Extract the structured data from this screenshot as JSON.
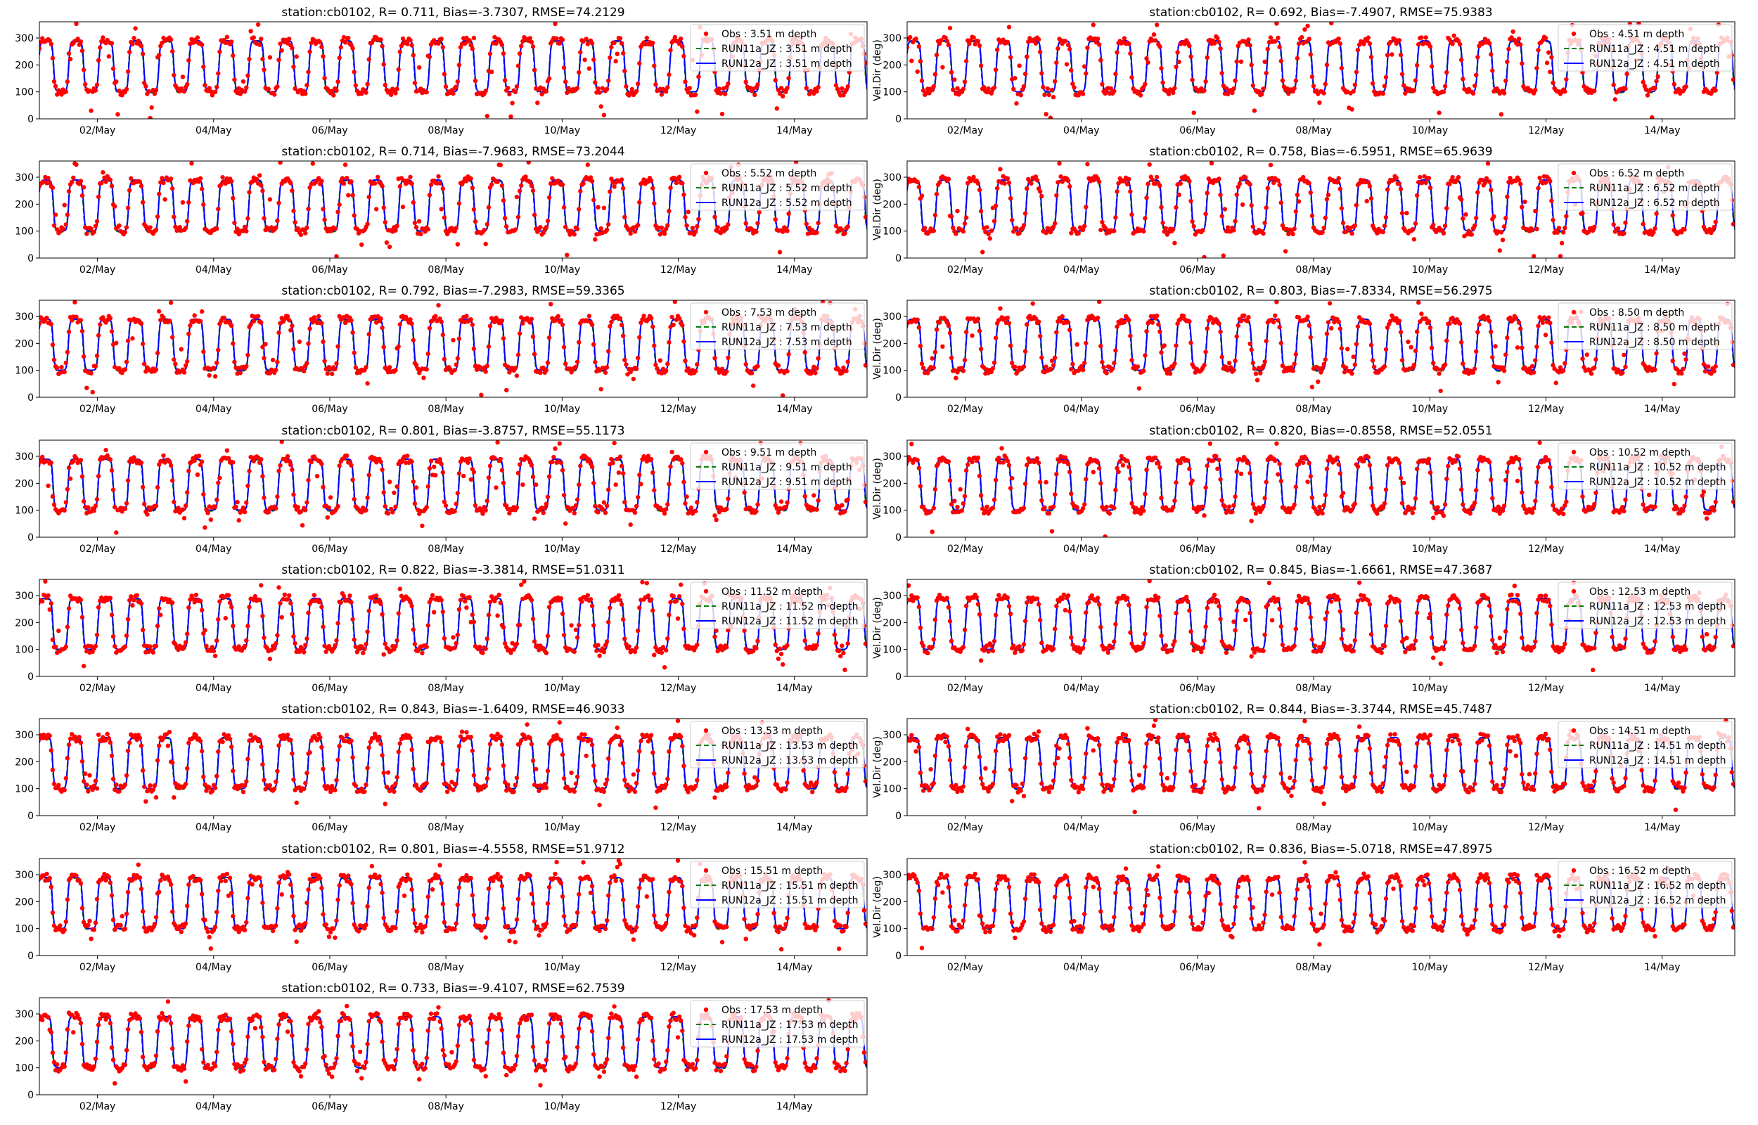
{
  "figure": {
    "background": "#ffffff"
  },
  "chart_data": [
    {
      "type": "scatter",
      "title": "station:cb0102, R= 0.711, Bias=-3.7307, RMSE=74.2129",
      "ylabel": "",
      "ylim": [
        0,
        360
      ],
      "yticks": [
        0,
        100,
        200,
        300
      ],
      "xlim": [
        "2024-05-01",
        "2024-05-15 06:00"
      ],
      "xticks": [
        "02/May",
        "04/May",
        "06/May",
        "08/May",
        "10/May",
        "12/May",
        "14/May"
      ],
      "grid": false,
      "legend_position": "top-right",
      "series": [
        {
          "name": "Obs : 3.51 m depth",
          "style": "dots",
          "color": "#ff0000"
        },
        {
          "name": "RUN11a_JZ : 3.51 m depth",
          "style": "dashed",
          "color": "#008000"
        },
        {
          "name": "RUN12a_JZ : 3.51 m depth",
          "style": "solid",
          "color": "#0000ff"
        }
      ]
    },
    {
      "type": "scatter",
      "title": "station:cb0102, R= 0.692, Bias=-7.4907, RMSE=75.9383",
      "ylabel": "Vel.Dir (deg)",
      "ylim": [
        0,
        360
      ],
      "yticks": [
        0,
        100,
        200,
        300
      ],
      "xlim": [
        "2024-05-01",
        "2024-05-15 06:00"
      ],
      "xticks": [
        "02/May",
        "04/May",
        "06/May",
        "08/May",
        "10/May",
        "12/May",
        "14/May"
      ],
      "grid": false,
      "legend_position": "top-right",
      "series": [
        {
          "name": "Obs : 4.51 m depth",
          "style": "dots",
          "color": "#ff0000"
        },
        {
          "name": "RUN11a_JZ : 4.51 m depth",
          "style": "dashed",
          "color": "#008000"
        },
        {
          "name": "RUN12a_JZ : 4.51 m depth",
          "style": "solid",
          "color": "#0000ff"
        }
      ]
    },
    {
      "type": "scatter",
      "title": "station:cb0102, R= 0.714, Bias=-7.9683, RMSE=73.2044",
      "ylabel": "",
      "ylim": [
        0,
        360
      ],
      "yticks": [
        0,
        100,
        200,
        300
      ],
      "xlim": [
        "2024-05-01",
        "2024-05-15 06:00"
      ],
      "xticks": [
        "02/May",
        "04/May",
        "06/May",
        "08/May",
        "10/May",
        "12/May",
        "14/May"
      ],
      "grid": false,
      "legend_position": "top-right",
      "series": [
        {
          "name": "Obs : 5.52 m depth",
          "style": "dots",
          "color": "#ff0000"
        },
        {
          "name": "RUN11a_JZ : 5.52 m depth",
          "style": "dashed",
          "color": "#008000"
        },
        {
          "name": "RUN12a_JZ : 5.52 m depth",
          "style": "solid",
          "color": "#0000ff"
        }
      ]
    },
    {
      "type": "scatter",
      "title": "station:cb0102, R= 0.758, Bias=-6.5951, RMSE=65.9639",
      "ylabel": "Vel.Dir (deg)",
      "ylim": [
        0,
        360
      ],
      "yticks": [
        0,
        100,
        200,
        300
      ],
      "xlim": [
        "2024-05-01",
        "2024-05-15 06:00"
      ],
      "xticks": [
        "02/May",
        "04/May",
        "06/May",
        "08/May",
        "10/May",
        "12/May",
        "14/May"
      ],
      "grid": false,
      "legend_position": "top-right",
      "series": [
        {
          "name": "Obs : 6.52 m depth",
          "style": "dots",
          "color": "#ff0000"
        },
        {
          "name": "RUN11a_JZ : 6.52 m depth",
          "style": "dashed",
          "color": "#008000"
        },
        {
          "name": "RUN12a_JZ : 6.52 m depth",
          "style": "solid",
          "color": "#0000ff"
        }
      ]
    },
    {
      "type": "scatter",
      "title": "station:cb0102, R= 0.792, Bias=-7.2983, RMSE=59.3365",
      "ylabel": "",
      "ylim": [
        0,
        360
      ],
      "yticks": [
        0,
        100,
        200,
        300
      ],
      "xlim": [
        "2024-05-01",
        "2024-05-15 06:00"
      ],
      "xticks": [
        "02/May",
        "04/May",
        "06/May",
        "08/May",
        "10/May",
        "12/May",
        "14/May"
      ],
      "grid": false,
      "legend_position": "top-right",
      "series": [
        {
          "name": "Obs : 7.53 m depth",
          "style": "dots",
          "color": "#ff0000"
        },
        {
          "name": "RUN11a_JZ : 7.53 m depth",
          "style": "dashed",
          "color": "#008000"
        },
        {
          "name": "RUN12a_JZ : 7.53 m depth",
          "style": "solid",
          "color": "#0000ff"
        }
      ]
    },
    {
      "type": "scatter",
      "title": "station:cb0102, R= 0.803, Bias=-7.8334, RMSE=56.2975",
      "ylabel": "Vel.Dir (deg)",
      "ylim": [
        0,
        360
      ],
      "yticks": [
        0,
        100,
        200,
        300
      ],
      "xlim": [
        "2024-05-01",
        "2024-05-15 06:00"
      ],
      "xticks": [
        "02/May",
        "04/May",
        "06/May",
        "08/May",
        "10/May",
        "12/May",
        "14/May"
      ],
      "grid": false,
      "legend_position": "top-right",
      "series": [
        {
          "name": "Obs : 8.50 m depth",
          "style": "dots",
          "color": "#ff0000"
        },
        {
          "name": "RUN11a_JZ : 8.50 m depth",
          "style": "dashed",
          "color": "#008000"
        },
        {
          "name": "RUN12a_JZ : 8.50 m depth",
          "style": "solid",
          "color": "#0000ff"
        }
      ]
    },
    {
      "type": "scatter",
      "title": "station:cb0102, R= 0.801, Bias=-3.8757, RMSE=55.1173",
      "ylabel": "",
      "ylim": [
        0,
        360
      ],
      "yticks": [
        0,
        100,
        200,
        300
      ],
      "xlim": [
        "2024-05-01",
        "2024-05-15 06:00"
      ],
      "xticks": [
        "02/May",
        "04/May",
        "06/May",
        "08/May",
        "10/May",
        "12/May",
        "14/May"
      ],
      "grid": false,
      "legend_position": "top-right",
      "series": [
        {
          "name": "Obs : 9.51 m depth",
          "style": "dots",
          "color": "#ff0000"
        },
        {
          "name": "RUN11a_JZ : 9.51 m depth",
          "style": "dashed",
          "color": "#008000"
        },
        {
          "name": "RUN12a_JZ : 9.51 m depth",
          "style": "solid",
          "color": "#0000ff"
        }
      ]
    },
    {
      "type": "scatter",
      "title": "station:cb0102, R= 0.820, Bias=-0.8558, RMSE=52.0551",
      "ylabel": "Vel.Dir (deg)",
      "ylim": [
        0,
        360
      ],
      "yticks": [
        0,
        100,
        200,
        300
      ],
      "xlim": [
        "2024-05-01",
        "2024-05-15 06:00"
      ],
      "xticks": [
        "02/May",
        "04/May",
        "06/May",
        "08/May",
        "10/May",
        "12/May",
        "14/May"
      ],
      "grid": false,
      "legend_position": "top-right",
      "series": [
        {
          "name": "Obs : 10.52 m depth",
          "style": "dots",
          "color": "#ff0000"
        },
        {
          "name": "RUN11a_JZ : 10.52 m depth",
          "style": "dashed",
          "color": "#008000"
        },
        {
          "name": "RUN12a_JZ : 10.52 m depth",
          "style": "solid",
          "color": "#0000ff"
        }
      ]
    },
    {
      "type": "scatter",
      "title": "station:cb0102, R= 0.822, Bias=-3.3814, RMSE=51.0311",
      "ylabel": "",
      "ylim": [
        0,
        360
      ],
      "yticks": [
        0,
        100,
        200,
        300
      ],
      "xlim": [
        "2024-05-01",
        "2024-05-15 06:00"
      ],
      "xticks": [
        "02/May",
        "04/May",
        "06/May",
        "08/May",
        "10/May",
        "12/May",
        "14/May"
      ],
      "grid": false,
      "legend_position": "top-right",
      "series": [
        {
          "name": "Obs : 11.52 m depth",
          "style": "dots",
          "color": "#ff0000"
        },
        {
          "name": "RUN11a_JZ : 11.52 m depth",
          "style": "dashed",
          "color": "#008000"
        },
        {
          "name": "RUN12a_JZ : 11.52 m depth",
          "style": "solid",
          "color": "#0000ff"
        }
      ]
    },
    {
      "type": "scatter",
      "title": "station:cb0102, R= 0.845, Bias=-1.6661, RMSE=47.3687",
      "ylabel": "Vel.Dir (deg)",
      "ylim": [
        0,
        360
      ],
      "yticks": [
        0,
        100,
        200,
        300
      ],
      "xlim": [
        "2024-05-01",
        "2024-05-15 06:00"
      ],
      "xticks": [
        "02/May",
        "04/May",
        "06/May",
        "08/May",
        "10/May",
        "12/May",
        "14/May"
      ],
      "grid": false,
      "legend_position": "top-right",
      "series": [
        {
          "name": "Obs : 12.53 m depth",
          "style": "dots",
          "color": "#ff0000"
        },
        {
          "name": "RUN11a_JZ : 12.53 m depth",
          "style": "dashed",
          "color": "#008000"
        },
        {
          "name": "RUN12a_JZ : 12.53 m depth",
          "style": "solid",
          "color": "#0000ff"
        }
      ]
    },
    {
      "type": "scatter",
      "title": "station:cb0102, R= 0.843, Bias=-1.6409, RMSE=46.9033",
      "ylabel": "",
      "ylim": [
        0,
        360
      ],
      "yticks": [
        0,
        100,
        200,
        300
      ],
      "xlim": [
        "2024-05-01",
        "2024-05-15 06:00"
      ],
      "xticks": [
        "02/May",
        "04/May",
        "06/May",
        "08/May",
        "10/May",
        "12/May",
        "14/May"
      ],
      "grid": false,
      "legend_position": "top-right",
      "series": [
        {
          "name": "Obs : 13.53 m depth",
          "style": "dots",
          "color": "#ff0000"
        },
        {
          "name": "RUN11a_JZ : 13.53 m depth",
          "style": "dashed",
          "color": "#008000"
        },
        {
          "name": "RUN12a_JZ : 13.53 m depth",
          "style": "solid",
          "color": "#0000ff"
        }
      ]
    },
    {
      "type": "scatter",
      "title": "station:cb0102, R= 0.844, Bias=-3.3744, RMSE=45.7487",
      "ylabel": "Vel.Dir (deg)",
      "ylim": [
        0,
        360
      ],
      "yticks": [
        0,
        100,
        200,
        300
      ],
      "xlim": [
        "2024-05-01",
        "2024-05-15 06:00"
      ],
      "xticks": [
        "02/May",
        "04/May",
        "06/May",
        "08/May",
        "10/May",
        "12/May",
        "14/May"
      ],
      "grid": false,
      "legend_position": "top-right",
      "series": [
        {
          "name": "Obs : 14.51 m depth",
          "style": "dots",
          "color": "#ff0000"
        },
        {
          "name": "RUN11a_JZ : 14.51 m depth",
          "style": "dashed",
          "color": "#008000"
        },
        {
          "name": "RUN12a_JZ : 14.51 m depth",
          "style": "solid",
          "color": "#0000ff"
        }
      ]
    },
    {
      "type": "scatter",
      "title": "station:cb0102, R= 0.801, Bias=-4.5558, RMSE=51.9712",
      "ylabel": "",
      "ylim": [
        0,
        360
      ],
      "yticks": [
        0,
        100,
        200,
        300
      ],
      "xlim": [
        "2024-05-01",
        "2024-05-15 06:00"
      ],
      "xticks": [
        "02/May",
        "04/May",
        "06/May",
        "08/May",
        "10/May",
        "12/May",
        "14/May"
      ],
      "grid": false,
      "legend_position": "top-right",
      "series": [
        {
          "name": "Obs : 15.51 m depth",
          "style": "dots",
          "color": "#ff0000"
        },
        {
          "name": "RUN11a_JZ : 15.51 m depth",
          "style": "dashed",
          "color": "#008000"
        },
        {
          "name": "RUN12a_JZ : 15.51 m depth",
          "style": "solid",
          "color": "#0000ff"
        }
      ]
    },
    {
      "type": "scatter",
      "title": "station:cb0102, R= 0.836, Bias=-5.0718, RMSE=47.8975",
      "ylabel": "Vel.Dir (deg)",
      "ylim": [
        0,
        360
      ],
      "yticks": [
        0,
        100,
        200,
        300
      ],
      "xlim": [
        "2024-05-01",
        "2024-05-15 06:00"
      ],
      "xticks": [
        "02/May",
        "04/May",
        "06/May",
        "08/May",
        "10/May",
        "12/May",
        "14/May"
      ],
      "grid": false,
      "legend_position": "top-right",
      "series": [
        {
          "name": "Obs : 16.52 m depth",
          "style": "dots",
          "color": "#ff0000"
        },
        {
          "name": "RUN11a_JZ : 16.52 m depth",
          "style": "dashed",
          "color": "#008000"
        },
        {
          "name": "RUN12a_JZ : 16.52 m depth",
          "style": "solid",
          "color": "#0000ff"
        }
      ]
    },
    {
      "type": "scatter",
      "title": "station:cb0102, R= 0.733, Bias=-9.4107, RMSE=62.7539",
      "ylabel": "",
      "ylim": [
        0,
        360
      ],
      "yticks": [
        0,
        100,
        200,
        300
      ],
      "xlim": [
        "2024-05-01",
        "2024-05-15 06:00"
      ],
      "xticks": [
        "02/May",
        "04/May",
        "06/May",
        "08/May",
        "10/May",
        "12/May",
        "14/May"
      ],
      "grid": false,
      "legend_position": "top-right",
      "series": [
        {
          "name": "Obs : 17.53 m depth",
          "style": "dots",
          "color": "#ff0000"
        },
        {
          "name": "RUN11a_JZ : 17.53 m depth",
          "style": "dashed",
          "color": "#008000"
        },
        {
          "name": "RUN12a_JZ : 17.53 m depth",
          "style": "solid",
          "color": "#0000ff"
        }
      ]
    }
  ]
}
